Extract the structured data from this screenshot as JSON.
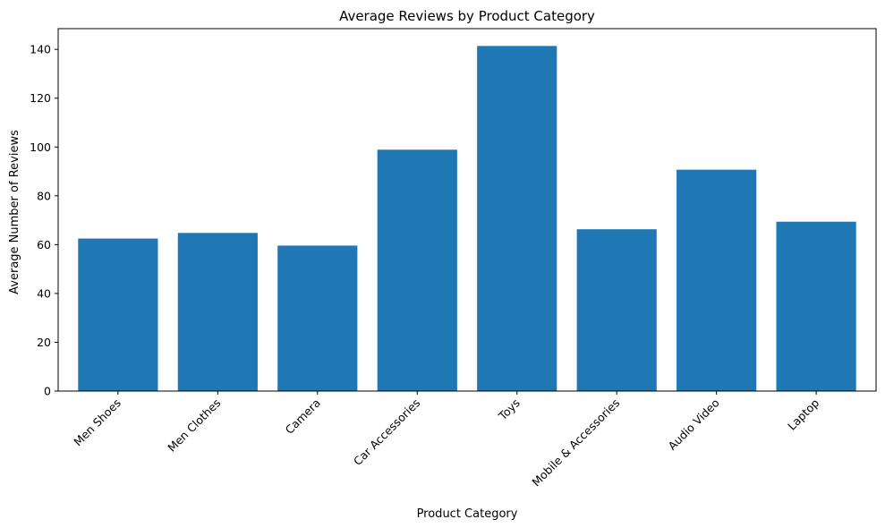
{
  "chart_data": {
    "type": "bar",
    "title": "Average Reviews by Product Category",
    "xlabel": "Product Category",
    "ylabel": "Average Number of Reviews",
    "categories": [
      "Men Shoes",
      "Men Clothes",
      "Camera",
      "Car Accessories",
      "Toys",
      "Mobile & Accessories",
      "Audio Video",
      "Laptop"
    ],
    "values": [
      62.5,
      64.8,
      59.6,
      98.9,
      141.4,
      66.3,
      90.7,
      69.4
    ],
    "ylim": [
      0,
      148.5
    ],
    "yticks": [
      0,
      20,
      40,
      60,
      80,
      100,
      120,
      140
    ],
    "bar_color": "#1f77b4",
    "grid": false,
    "legend": "none"
  }
}
